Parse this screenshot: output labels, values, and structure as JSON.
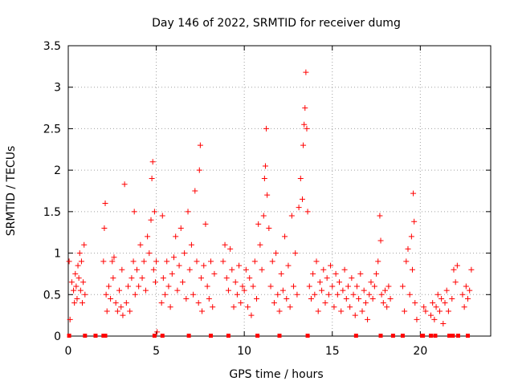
{
  "chart_data": {
    "type": "scatter",
    "title": "Day 146 of 2022, SRMTID for receiver dumg",
    "xlabel": "GPS time / hours",
    "ylabel": "SRMTID / TECUs",
    "xlim": [
      0,
      24
    ],
    "ylim": [
      0,
      3.5
    ],
    "xticks": [
      0,
      5,
      10,
      15,
      20
    ],
    "xtick_labels": [
      "0",
      "5",
      "10",
      "15",
      "20"
    ],
    "yticks": [
      0,
      0.5,
      1,
      1.5,
      2,
      2.5,
      3,
      3.5
    ],
    "ytick_labels": [
      "0",
      "0.5",
      "1",
      "1.5",
      "2",
      "2.5",
      "3",
      "3.5"
    ],
    "grid": true,
    "marker": "+",
    "color": "#ff0000",
    "series": [
      {
        "name": "SRMTID",
        "points": [
          [
            0.05,
            0.9
          ],
          [
            0.1,
            0.2
          ],
          [
            0.2,
            0.65
          ],
          [
            0.3,
            0.55
          ],
          [
            0.35,
            0.4
          ],
          [
            0.4,
            0.75
          ],
          [
            0.45,
            0.6
          ],
          [
            0.5,
            0.45
          ],
          [
            0.55,
            0.85
          ],
          [
            0.6,
            0.7
          ],
          [
            0.65,
            1.0
          ],
          [
            0.7,
            0.55
          ],
          [
            0.75,
            0.9
          ],
          [
            0.8,
            0.4
          ],
          [
            0.85,
            0.65
          ],
          [
            0.9,
            1.1
          ],
          [
            0.95,
            0.5
          ],
          [
            2.0,
            0.9
          ],
          [
            2.05,
            1.3
          ],
          [
            2.1,
            1.6
          ],
          [
            2.15,
            0.5
          ],
          [
            2.2,
            0.3
          ],
          [
            2.3,
            0.6
          ],
          [
            2.4,
            0.45
          ],
          [
            2.5,
            0.9
          ],
          [
            2.55,
            0.7
          ],
          [
            2.6,
            0.95
          ],
          [
            2.7,
            0.4
          ],
          [
            2.8,
            0.3
          ],
          [
            2.9,
            0.55
          ],
          [
            3.0,
            0.35
          ],
          [
            3.05,
            0.8
          ],
          [
            3.1,
            0.25
          ],
          [
            3.2,
            1.83
          ],
          [
            3.3,
            0.4
          ],
          [
            3.4,
            0.6
          ],
          [
            3.5,
            0.3
          ],
          [
            3.6,
            0.7
          ],
          [
            3.7,
            0.9
          ],
          [
            3.75,
            1.5
          ],
          [
            3.8,
            0.5
          ],
          [
            3.9,
            0.8
          ],
          [
            4.0,
            0.6
          ],
          [
            4.1,
            1.1
          ],
          [
            4.2,
            0.7
          ],
          [
            4.3,
            0.9
          ],
          [
            4.4,
            0.55
          ],
          [
            4.5,
            1.2
          ],
          [
            4.6,
            1.0
          ],
          [
            4.7,
            1.4
          ],
          [
            4.75,
            1.9
          ],
          [
            4.8,
            2.1
          ],
          [
            4.85,
            0.8
          ],
          [
            4.9,
            1.5
          ],
          [
            4.95,
            0.65
          ],
          [
            5.0,
            0.9
          ],
          [
            5.05,
            0.05
          ],
          [
            5.3,
            0.4
          ],
          [
            5.35,
            1.45
          ],
          [
            5.4,
            0.7
          ],
          [
            5.5,
            0.5
          ],
          [
            5.6,
            0.9
          ],
          [
            5.7,
            0.6
          ],
          [
            5.8,
            0.35
          ],
          [
            5.9,
            0.75
          ],
          [
            6.0,
            0.95
          ],
          [
            6.1,
            1.2
          ],
          [
            6.2,
            0.55
          ],
          [
            6.3,
            0.85
          ],
          [
            6.4,
            1.3
          ],
          [
            6.5,
            0.65
          ],
          [
            6.6,
            1.0
          ],
          [
            6.7,
            0.45
          ],
          [
            6.8,
            1.5
          ],
          [
            6.9,
            0.8
          ],
          [
            7.0,
            1.1
          ],
          [
            7.1,
            0.5
          ],
          [
            7.2,
            1.75
          ],
          [
            7.3,
            0.9
          ],
          [
            7.4,
            0.4
          ],
          [
            7.45,
            2.0
          ],
          [
            7.5,
            2.3
          ],
          [
            7.55,
            0.7
          ],
          [
            7.6,
            0.3
          ],
          [
            7.7,
            0.85
          ],
          [
            7.8,
            1.35
          ],
          [
            7.9,
            0.6
          ],
          [
            8.0,
            0.45
          ],
          [
            8.1,
            0.9
          ],
          [
            8.2,
            0.35
          ],
          [
            8.3,
            0.75
          ],
          [
            8.8,
            0.9
          ],
          [
            8.9,
            1.1
          ],
          [
            9.0,
            0.7
          ],
          [
            9.1,
            0.55
          ],
          [
            9.2,
            1.05
          ],
          [
            9.3,
            0.8
          ],
          [
            9.4,
            0.35
          ],
          [
            9.5,
            0.65
          ],
          [
            9.6,
            0.5
          ],
          [
            9.7,
            0.85
          ],
          [
            9.8,
            0.4
          ],
          [
            9.9,
            0.6
          ],
          [
            10.0,
            0.55
          ],
          [
            10.1,
            0.8
          ],
          [
            10.2,
            0.35
          ],
          [
            10.3,
            0.7
          ],
          [
            10.4,
            0.25
          ],
          [
            10.5,
            0.6
          ],
          [
            10.6,
            0.9
          ],
          [
            10.7,
            0.45
          ],
          [
            10.8,
            1.35
          ],
          [
            10.9,
            1.1
          ],
          [
            11.0,
            0.8
          ],
          [
            11.1,
            1.45
          ],
          [
            11.15,
            1.9
          ],
          [
            11.2,
            2.05
          ],
          [
            11.25,
            2.5
          ],
          [
            11.3,
            1.7
          ],
          [
            11.4,
            1.3
          ],
          [
            11.5,
            0.6
          ],
          [
            11.6,
            0.9
          ],
          [
            11.7,
            0.4
          ],
          [
            11.8,
            1.0
          ],
          [
            11.9,
            0.5
          ],
          [
            12.0,
            0.3
          ],
          [
            12.1,
            0.75
          ],
          [
            12.2,
            0.55
          ],
          [
            12.3,
            1.2
          ],
          [
            12.4,
            0.45
          ],
          [
            12.5,
            0.85
          ],
          [
            12.6,
            0.35
          ],
          [
            12.7,
            1.45
          ],
          [
            12.8,
            0.6
          ],
          [
            12.9,
            1.0
          ],
          [
            13.0,
            0.5
          ],
          [
            13.1,
            1.55
          ],
          [
            13.2,
            1.9
          ],
          [
            13.3,
            1.65
          ],
          [
            13.35,
            2.3
          ],
          [
            13.4,
            2.55
          ],
          [
            13.45,
            2.75
          ],
          [
            13.5,
            3.18
          ],
          [
            13.55,
            2.5
          ],
          [
            13.6,
            1.5
          ],
          [
            13.7,
            0.6
          ],
          [
            13.8,
            0.45
          ],
          [
            13.9,
            0.75
          ],
          [
            14.0,
            0.5
          ],
          [
            14.1,
            0.9
          ],
          [
            14.2,
            0.3
          ],
          [
            14.3,
            0.65
          ],
          [
            14.4,
            0.55
          ],
          [
            14.5,
            0.8
          ],
          [
            14.6,
            0.4
          ],
          [
            14.7,
            0.7
          ],
          [
            14.8,
            0.5
          ],
          [
            14.9,
            0.85
          ],
          [
            15.0,
            0.6
          ],
          [
            15.1,
            0.35
          ],
          [
            15.2,
            0.75
          ],
          [
            15.3,
            0.5
          ],
          [
            15.4,
            0.65
          ],
          [
            15.5,
            0.3
          ],
          [
            15.6,
            0.55
          ],
          [
            15.7,
            0.8
          ],
          [
            15.8,
            0.45
          ],
          [
            15.9,
            0.6
          ],
          [
            16.0,
            0.35
          ],
          [
            16.1,
            0.7
          ],
          [
            16.2,
            0.5
          ],
          [
            16.3,
            0.25
          ],
          [
            16.4,
            0.6
          ],
          [
            16.5,
            0.45
          ],
          [
            16.6,
            0.75
          ],
          [
            16.7,
            0.3
          ],
          [
            16.8,
            0.55
          ],
          [
            16.9,
            0.4
          ],
          [
            17.0,
            0.2
          ],
          [
            17.1,
            0.5
          ],
          [
            17.2,
            0.65
          ],
          [
            17.3,
            0.45
          ],
          [
            17.4,
            0.6
          ],
          [
            17.5,
            0.75
          ],
          [
            17.6,
            0.9
          ],
          [
            17.7,
            1.45
          ],
          [
            17.75,
            1.15
          ],
          [
            17.8,
            0.5
          ],
          [
            17.9,
            0.4
          ],
          [
            18.0,
            0.55
          ],
          [
            18.1,
            0.35
          ],
          [
            18.2,
            0.6
          ],
          [
            18.3,
            0.45
          ],
          [
            19.0,
            0.6
          ],
          [
            19.1,
            0.3
          ],
          [
            19.2,
            0.9
          ],
          [
            19.3,
            1.05
          ],
          [
            19.4,
            0.5
          ],
          [
            19.5,
            1.2
          ],
          [
            19.55,
            0.8
          ],
          [
            19.6,
            1.72
          ],
          [
            19.65,
            1.38
          ],
          [
            19.7,
            0.4
          ],
          [
            19.8,
            0.2
          ],
          [
            20.2,
            0.35
          ],
          [
            20.3,
            0.3
          ],
          [
            20.6,
            0.25
          ],
          [
            20.7,
            0.4
          ],
          [
            20.8,
            0.2
          ],
          [
            20.9,
            0.35
          ],
          [
            21.0,
            0.5
          ],
          [
            21.1,
            0.3
          ],
          [
            21.2,
            0.45
          ],
          [
            21.3,
            0.15
          ],
          [
            21.4,
            0.4
          ],
          [
            21.5,
            0.55
          ],
          [
            21.6,
            0.3
          ],
          [
            21.8,
            0.45
          ],
          [
            21.9,
            0.8
          ],
          [
            22.0,
            0.65
          ],
          [
            22.1,
            0.85
          ],
          [
            22.4,
            0.5
          ],
          [
            22.5,
            0.35
          ],
          [
            22.6,
            0.6
          ],
          [
            22.7,
            0.45
          ],
          [
            22.8,
            0.55
          ],
          [
            22.9,
            0.8
          ]
        ]
      }
    ],
    "gap_markers_x": [
      0.05,
      0.95,
      1.55,
      2.0,
      2.1,
      4.9,
      5.35,
      6.85,
      8.1,
      9.1,
      10.75,
      12.0,
      13.6,
      16.35,
      17.75,
      18.45,
      19.0,
      20.1,
      20.15,
      20.6,
      20.85,
      21.65,
      21.85,
      22.15,
      22.7
    ]
  }
}
